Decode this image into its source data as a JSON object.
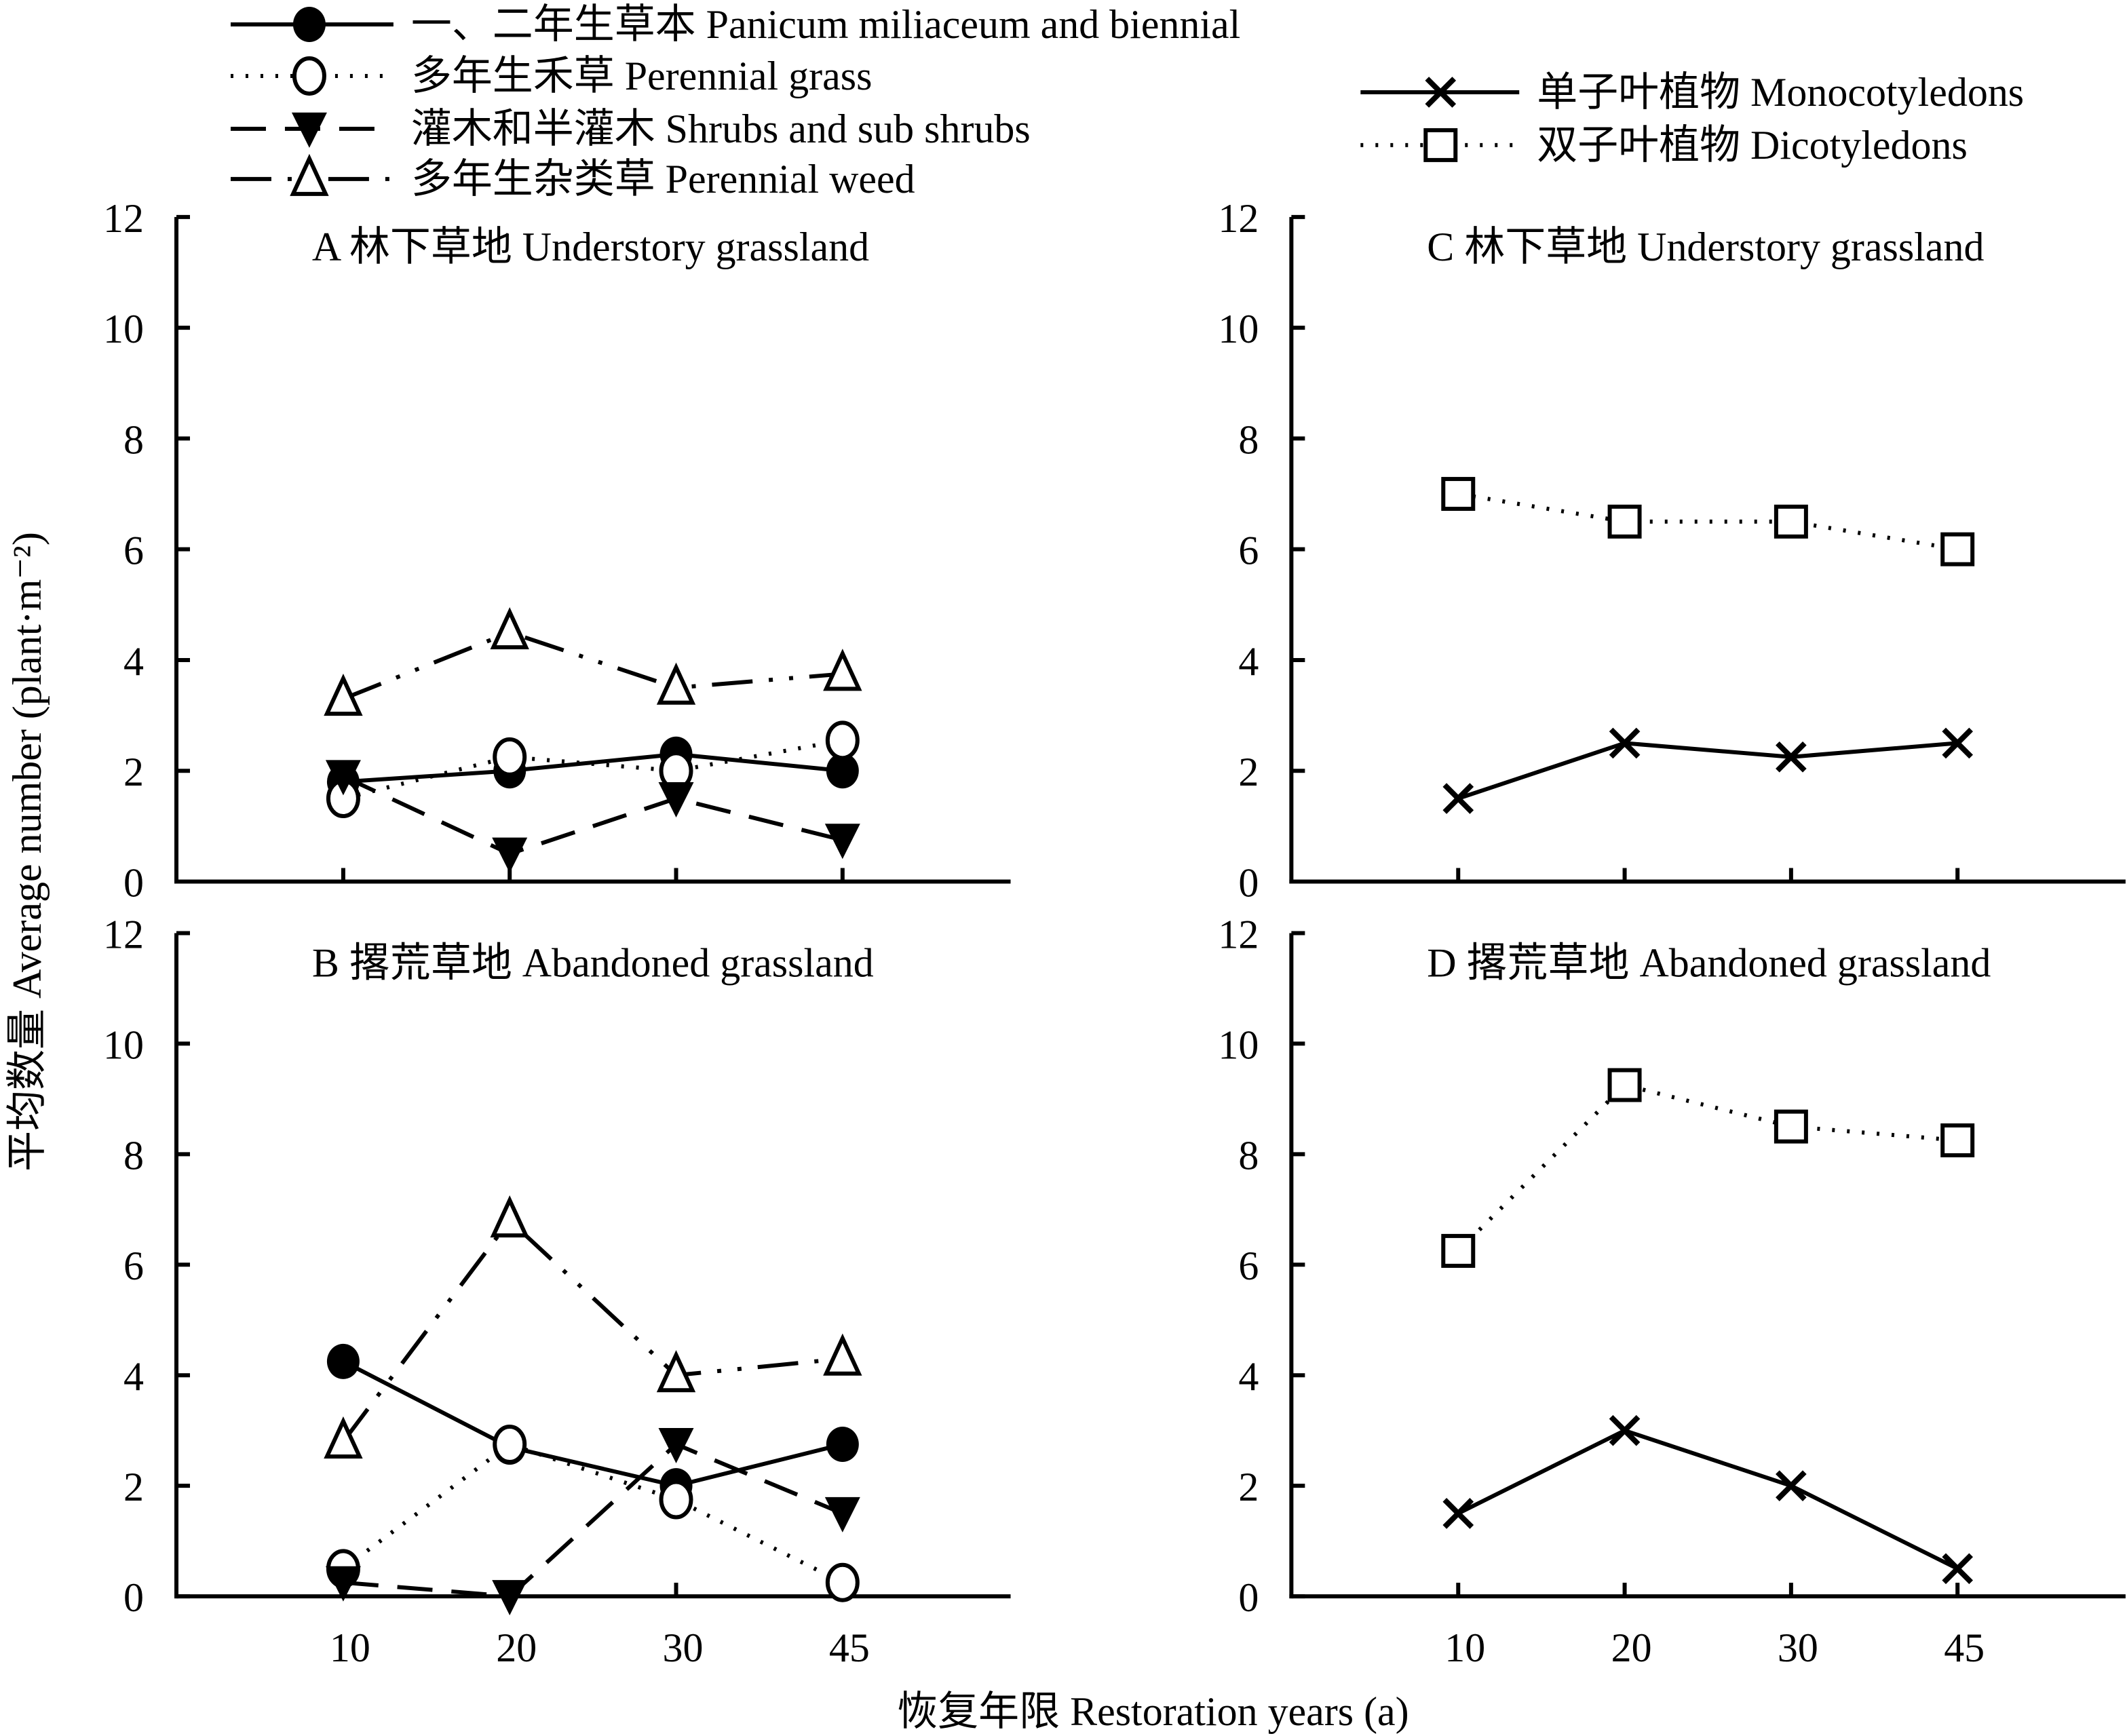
{
  "legend_left": [
    {
      "key": "panicum",
      "label": "一、二年生草本 Panicum miliaceum and biennial"
    },
    {
      "key": "pgrass",
      "label": "多年生禾草 Perennial grass"
    },
    {
      "key": "shrubs",
      "label": "灌木和半灌木 Shrubs and sub shrubs"
    },
    {
      "key": "pweed",
      "label": "多年生杂类草 Perennial weed"
    }
  ],
  "legend_right": [
    {
      "key": "mono",
      "label": "单子叶植物 Monocotyledons"
    },
    {
      "key": "dicot",
      "label": "双子叶植物 Dicotyledons"
    }
  ],
  "ylabel": "平均数量 Average number (plant·m⁻²)",
  "xlabel": "恢复年限 Restoration years (a)",
  "chart_data": [
    {
      "type": "line",
      "panel": "A",
      "title": "A 林下草地 Understory grassland",
      "categories": [
        "10",
        "20",
        "30",
        "45"
      ],
      "ylim": [
        0,
        12
      ],
      "yticks": [
        "0",
        "2",
        "4",
        "6",
        "8",
        "10",
        "12"
      ],
      "series": [
        {
          "key": "panicum",
          "values": [
            1.8,
            2.0,
            2.3,
            2.0
          ]
        },
        {
          "key": "pgrass",
          "values": [
            1.5,
            2.25,
            2.0,
            2.55
          ]
        },
        {
          "key": "shrubs",
          "values": [
            1.9,
            0.5,
            1.5,
            0.75
          ]
        },
        {
          "key": "pweed",
          "values": [
            3.3,
            4.5,
            3.5,
            3.75
          ]
        }
      ]
    },
    {
      "type": "line",
      "panel": "B",
      "title": "B 撂荒草地 Abandoned grassland",
      "categories": [
        "10",
        "20",
        "30",
        "45"
      ],
      "ylim": [
        0,
        12
      ],
      "yticks": [
        "0",
        "2",
        "4",
        "6",
        "8",
        "10",
        "12"
      ],
      "series": [
        {
          "key": "panicum",
          "values": [
            4.25,
            2.7,
            2.0,
            2.75
          ]
        },
        {
          "key": "pgrass",
          "values": [
            0.5,
            2.75,
            1.75,
            0.25
          ]
        },
        {
          "key": "shrubs",
          "values": [
            0.25,
            0.0,
            2.75,
            1.5
          ]
        },
        {
          "key": "pweed",
          "values": [
            2.8,
            6.8,
            4.0,
            4.3
          ]
        }
      ]
    },
    {
      "type": "line",
      "panel": "C",
      "title": "C 林下草地 Understory grassland",
      "categories": [
        "10",
        "20",
        "30",
        "45"
      ],
      "ylim": [
        0,
        12
      ],
      "yticks": [
        "0",
        "2",
        "4",
        "6",
        "8",
        "10",
        "12"
      ],
      "series": [
        {
          "key": "mono",
          "values": [
            1.5,
            2.5,
            2.25,
            2.5
          ]
        },
        {
          "key": "dicot",
          "values": [
            7.0,
            6.5,
            6.5,
            6.0
          ]
        }
      ]
    },
    {
      "type": "line",
      "panel": "D",
      "title": "D 撂荒草地 Abandoned grassland",
      "categories": [
        "10",
        "20",
        "30",
        "45"
      ],
      "ylim": [
        0,
        12
      ],
      "yticks": [
        "0",
        "2",
        "4",
        "6",
        "8",
        "10",
        "12"
      ],
      "series": [
        {
          "key": "mono",
          "values": [
            1.5,
            3.0,
            2.0,
            0.5
          ]
        },
        {
          "key": "dicot",
          "values": [
            6.25,
            9.25,
            8.5,
            8.25
          ]
        }
      ]
    }
  ]
}
